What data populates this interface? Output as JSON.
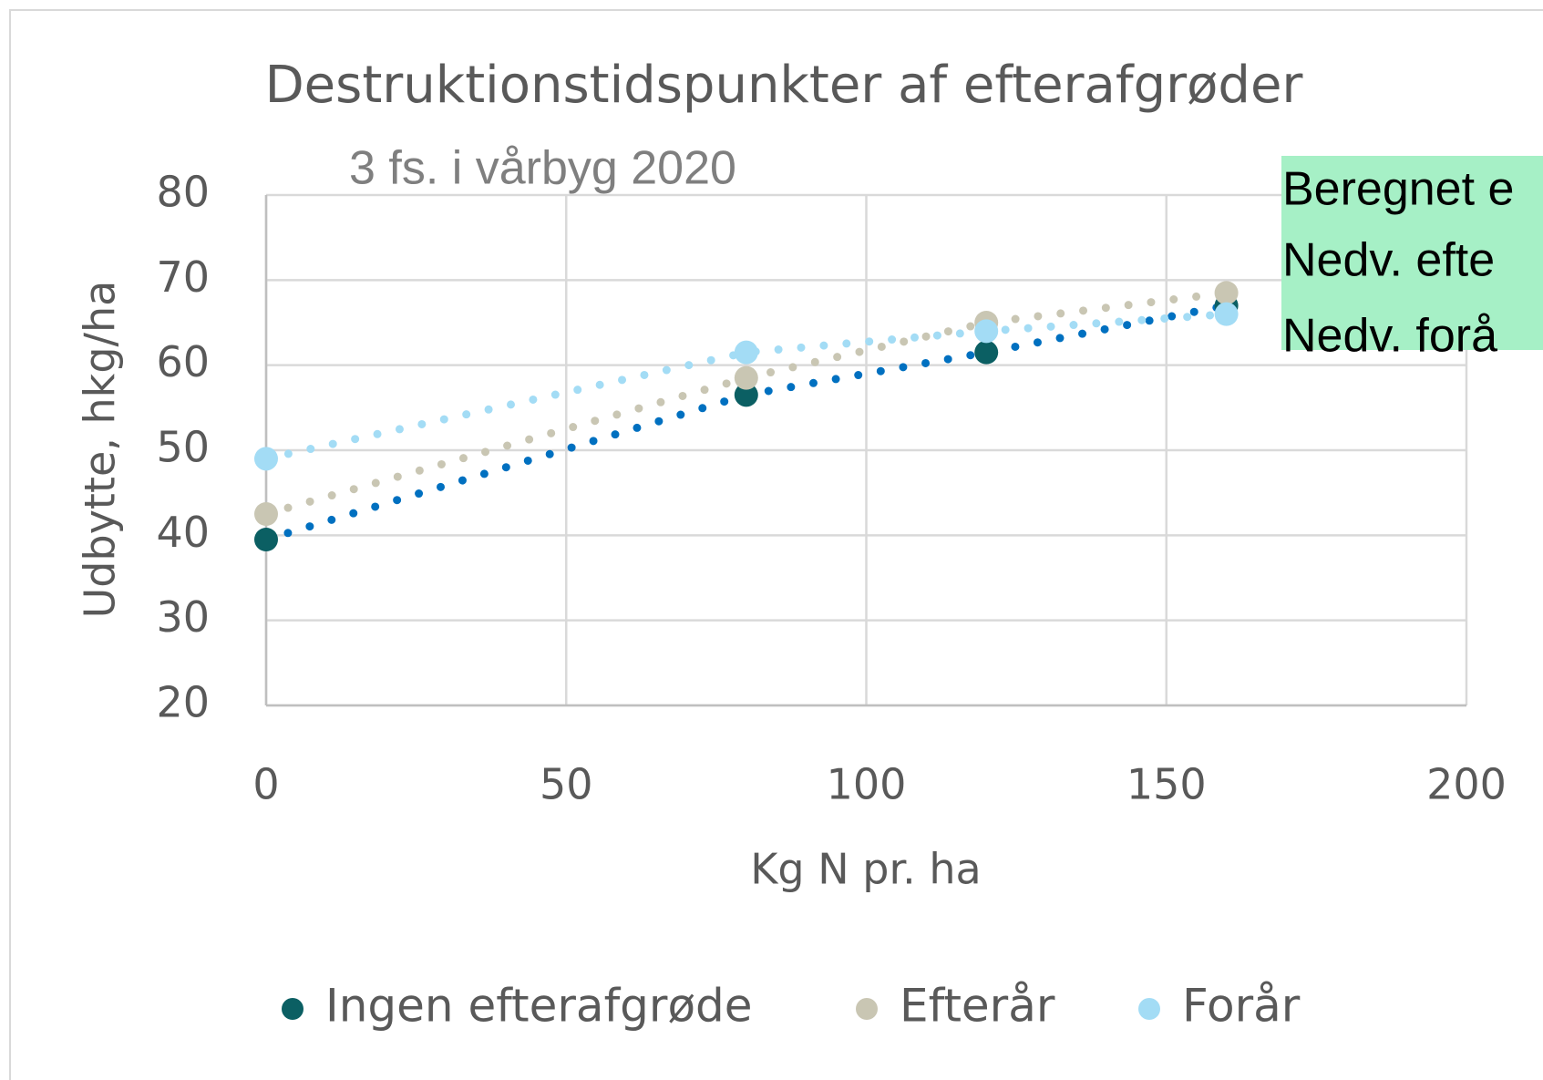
{
  "chart_data": {
    "type": "scatter",
    "title": "Destruktionstidspunkter af efterafgrøder",
    "subtitle": "3 fs. i vårbyg 2020",
    "xlabel": "Kg N pr. ha",
    "ylabel": "Udbytte, hkg/ha",
    "x": [
      0,
      80,
      120,
      160
    ],
    "series": [
      {
        "name": "Ingen efterafgrøde",
        "color": "#0b5f63",
        "trend_color": "#0070c0",
        "values": [
          39.5,
          56.5,
          61.5,
          67
        ]
      },
      {
        "name": "Efterår",
        "color": "#c9c6b3",
        "trend_color": "#c9c6b3",
        "values": [
          42.5,
          58.5,
          65,
          68.5
        ]
      },
      {
        "name": "Forår",
        "color": "#a3dcf5",
        "trend_color": "#a3dcf5",
        "values": [
          49,
          61.5,
          64,
          66
        ]
      }
    ],
    "xlim": [
      0,
      200
    ],
    "xticks": [
      0,
      50,
      100,
      150,
      200
    ],
    "ylim": [
      20,
      80
    ],
    "yticks": [
      20,
      30,
      40,
      50,
      60,
      70,
      80
    ],
    "grid": true,
    "legend": "bottom",
    "annotations": [
      "Beregnet e",
      "Nedv. efte",
      "Nedv. forå"
    ]
  }
}
